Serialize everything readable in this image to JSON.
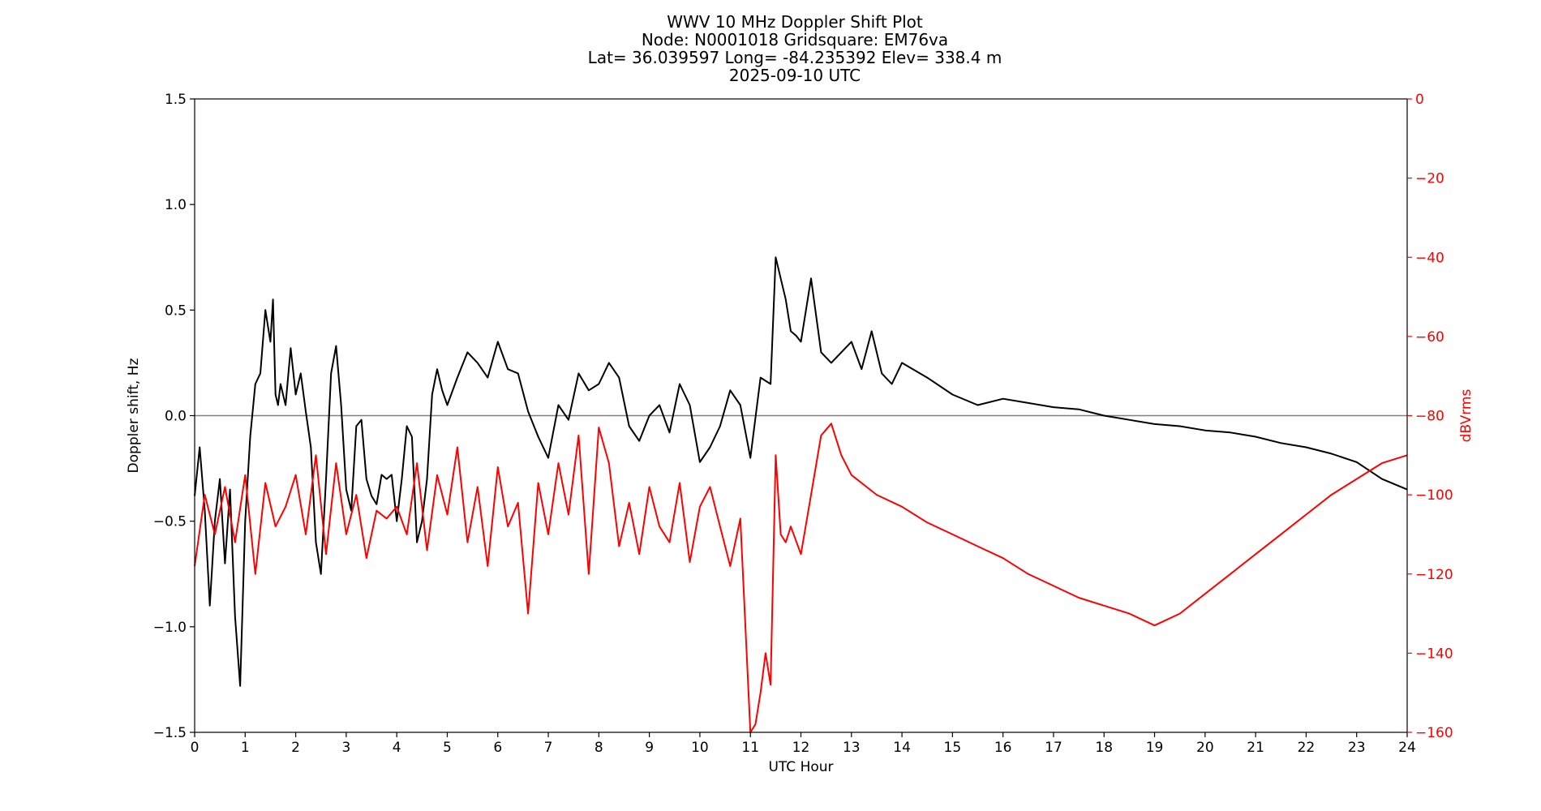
{
  "chart_data": {
    "type": "line",
    "title_lines": [
      "WWV 10 MHz Doppler Shift Plot",
      "Node:  N0001018     Gridsquare:  EM76va",
      "Lat= 36.039597    Long= -84.235392    Elev= 338.4 m",
      "2025-09-10  UTC"
    ],
    "xlabel": "UTC Hour",
    "ylabel_left": "Doppler shift, Hz",
    "ylabel_right": "dBVrms",
    "xlim": [
      0,
      24
    ],
    "ylim_left": [
      -1.5,
      1.5
    ],
    "ylim_right": [
      -160,
      0
    ],
    "x_ticks": [
      "0",
      "1",
      "2",
      "3",
      "4",
      "5",
      "6",
      "7",
      "8",
      "9",
      "10",
      "11",
      "12",
      "13",
      "14",
      "15",
      "16",
      "17",
      "18",
      "19",
      "20",
      "21",
      "22",
      "23",
      "24"
    ],
    "y_ticks_left": [
      "1.5",
      "1.0",
      "0.5",
      "0.0",
      "−0.5",
      "−1.0",
      "−1.5"
    ],
    "y_ticks_right": [
      "0",
      "−20",
      "−40",
      "−60",
      "−80",
      "−100",
      "−120",
      "−140",
      "−160"
    ],
    "grid": false,
    "reference_line": 0,
    "colors": {
      "doppler": "#000000",
      "power": "#ff0000",
      "zero_line": "#808080",
      "right_axis": "#ff0000"
    },
    "series": [
      {
        "axis": "left",
        "color": "#000000",
        "x": [
          0,
          0.1,
          0.2,
          0.3,
          0.4,
          0.5,
          0.6,
          0.7,
          0.8,
          0.9,
          1.0,
          1.1,
          1.2,
          1.3,
          1.4,
          1.5,
          1.55,
          1.6,
          1.65,
          1.7,
          1.8,
          1.9,
          2.0,
          2.1,
          2.2,
          2.3,
          2.4,
          2.5,
          2.6,
          2.7,
          2.8,
          2.9,
          3.0,
          3.1,
          3.2,
          3.3,
          3.4,
          3.5,
          3.6,
          3.7,
          3.8,
          3.9,
          4.0,
          4.1,
          4.2,
          4.3,
          4.4,
          4.5,
          4.6,
          4.7,
          4.8,
          4.9,
          5.0,
          5.2,
          5.4,
          5.6,
          5.8,
          6.0,
          6.2,
          6.4,
          6.6,
          6.8,
          7.0,
          7.2,
          7.4,
          7.6,
          7.8,
          8.0,
          8.2,
          8.4,
          8.6,
          8.8,
          9.0,
          9.2,
          9.4,
          9.6,
          9.8,
          10.0,
          10.2,
          10.4,
          10.6,
          10.8,
          11.0,
          11.2,
          11.4,
          11.5,
          11.6,
          11.7,
          11.8,
          11.9,
          12.0,
          12.2,
          12.4,
          12.6,
          12.8,
          13.0,
          13.2,
          13.4,
          13.6,
          13.8,
          14.0,
          14.5,
          15.0,
          15.5,
          16.0,
          16.5,
          17.0,
          17.5,
          18.0,
          18.5,
          19.0,
          19.5,
          20.0,
          20.5,
          21.0,
          21.5,
          22.0,
          22.5,
          23.0,
          23.5,
          24.0
        ],
        "values": [
          -0.38,
          -0.15,
          -0.45,
          -0.9,
          -0.5,
          -0.3,
          -0.7,
          -0.35,
          -0.95,
          -1.28,
          -0.5,
          -0.1,
          0.15,
          0.2,
          0.5,
          0.35,
          0.55,
          0.1,
          0.05,
          0.15,
          0.05,
          0.32,
          0.1,
          0.2,
          0.02,
          -0.15,
          -0.6,
          -0.75,
          -0.3,
          0.2,
          0.33,
          0.05,
          -0.35,
          -0.45,
          -0.05,
          -0.02,
          -0.3,
          -0.38,
          -0.42,
          -0.28,
          -0.3,
          -0.28,
          -0.5,
          -0.3,
          -0.05,
          -0.1,
          -0.6,
          -0.5,
          -0.3,
          0.1,
          0.22,
          0.12,
          0.05,
          0.18,
          0.3,
          0.25,
          0.18,
          0.35,
          0.22,
          0.2,
          0.02,
          -0.1,
          -0.2,
          0.05,
          -0.02,
          0.2,
          0.12,
          0.15,
          0.25,
          0.18,
          -0.05,
          -0.12,
          0.0,
          0.05,
          -0.08,
          0.15,
          0.05,
          -0.22,
          -0.15,
          -0.05,
          0.12,
          0.05,
          -0.2,
          0.18,
          0.15,
          0.75,
          0.65,
          0.55,
          0.4,
          0.38,
          0.35,
          0.65,
          0.3,
          0.25,
          0.3,
          0.35,
          0.22,
          0.4,
          0.2,
          0.15,
          0.25,
          0.18,
          0.1,
          0.05,
          0.08,
          0.06,
          0.04,
          0.03,
          0.0,
          -0.02,
          -0.04,
          -0.05,
          -0.07,
          -0.08,
          -0.1,
          -0.13,
          -0.15,
          -0.18,
          -0.22,
          -0.3,
          -0.35
        ]
      },
      {
        "axis": "right",
        "color": "#ff0000",
        "x": [
          0,
          0.2,
          0.4,
          0.6,
          0.8,
          1.0,
          1.2,
          1.4,
          1.6,
          1.8,
          2.0,
          2.2,
          2.4,
          2.6,
          2.8,
          3.0,
          3.2,
          3.4,
          3.6,
          3.8,
          4.0,
          4.2,
          4.4,
          4.6,
          4.8,
          5.0,
          5.2,
          5.4,
          5.6,
          5.8,
          6.0,
          6.2,
          6.4,
          6.6,
          6.8,
          7.0,
          7.2,
          7.4,
          7.6,
          7.8,
          8.0,
          8.2,
          8.4,
          8.6,
          8.8,
          9.0,
          9.2,
          9.4,
          9.6,
          9.8,
          10.0,
          10.2,
          10.4,
          10.6,
          10.8,
          11.0,
          11.1,
          11.2,
          11.3,
          11.4,
          11.5,
          11.6,
          11.7,
          11.8,
          12.0,
          12.2,
          12.4,
          12.6,
          12.8,
          13.0,
          13.5,
          14.0,
          14.5,
          15.0,
          15.5,
          16.0,
          16.5,
          17.0,
          17.5,
          18.0,
          18.5,
          19.0,
          19.5,
          20.0,
          20.5,
          21.0,
          21.5,
          22.0,
          22.5,
          23.0,
          23.5,
          24.0
        ],
        "values": [
          -118,
          -100,
          -110,
          -98,
          -112,
          -95,
          -120,
          -97,
          -108,
          -103,
          -95,
          -110,
          -90,
          -115,
          -92,
          -110,
          -100,
          -116,
          -104,
          -106,
          -103,
          -110,
          -92,
          -114,
          -95,
          -105,
          -88,
          -112,
          -98,
          -118,
          -93,
          -108,
          -102,
          -130,
          -97,
          -110,
          -92,
          -105,
          -85,
          -120,
          -83,
          -92,
          -113,
          -102,
          -115,
          -98,
          -108,
          -112,
          -97,
          -117,
          -103,
          -98,
          -108,
          -118,
          -106,
          -162,
          -158,
          -150,
          -140,
          -148,
          -90,
          -110,
          -112,
          -108,
          -115,
          -100,
          -85,
          -82,
          -90,
          -95,
          -100,
          -103,
          -107,
          -110,
          -113,
          -116,
          -120,
          -123,
          -126,
          -128,
          -130,
          -133,
          -130,
          -125,
          -120,
          -115,
          -110,
          -105,
          -100,
          -96,
          -92,
          -90
        ]
      }
    ]
  }
}
